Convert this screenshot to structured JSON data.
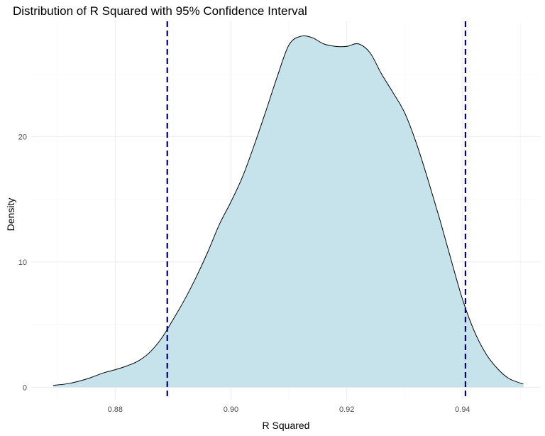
{
  "chart_data": {
    "type": "area",
    "title": "Distribution of R Squared with 95% Confidence Interval",
    "xlabel": "R Squared",
    "ylabel": "Density",
    "xlim": [
      0.8655,
      0.9535
    ],
    "ylim": [
      -1.0,
      29.2
    ],
    "x_ticks": [
      0.88,
      0.9,
      0.92,
      0.94
    ],
    "x_tick_labels": [
      "0.88",
      "0.90",
      "0.92",
      "0.94"
    ],
    "y_ticks": [
      0,
      10,
      20
    ],
    "y_tick_labels": [
      "0",
      "10",
      "20"
    ],
    "grid": true,
    "fill_color": "#c6e3ec",
    "line_color": "#000000",
    "ci_line_color": "#00007a",
    "ci_lower": 0.889,
    "ci_upper": 0.9405,
    "x": [
      0.8693,
      0.872,
      0.875,
      0.878,
      0.88,
      0.882,
      0.884,
      0.886,
      0.888,
      0.89,
      0.892,
      0.894,
      0.896,
      0.898,
      0.9,
      0.902,
      0.904,
      0.906,
      0.908,
      0.91,
      0.912,
      0.914,
      0.916,
      0.918,
      0.92,
      0.922,
      0.924,
      0.926,
      0.928,
      0.93,
      0.932,
      0.934,
      0.936,
      0.938,
      0.94,
      0.942,
      0.944,
      0.946,
      0.948,
      0.9505
    ],
    "y": [
      0.15,
      0.3,
      0.65,
      1.15,
      1.4,
      1.7,
      2.1,
      2.8,
      3.9,
      5.4,
      7.0,
      8.8,
      10.8,
      13.0,
      14.8,
      16.8,
      19.3,
      22.0,
      24.8,
      27.3,
      28.0,
      27.9,
      27.4,
      27.2,
      27.2,
      27.4,
      26.7,
      25.0,
      23.5,
      21.9,
      19.5,
      16.6,
      13.5,
      10.2,
      7.0,
      4.5,
      2.7,
      1.5,
      0.7,
      0.25
    ]
  }
}
